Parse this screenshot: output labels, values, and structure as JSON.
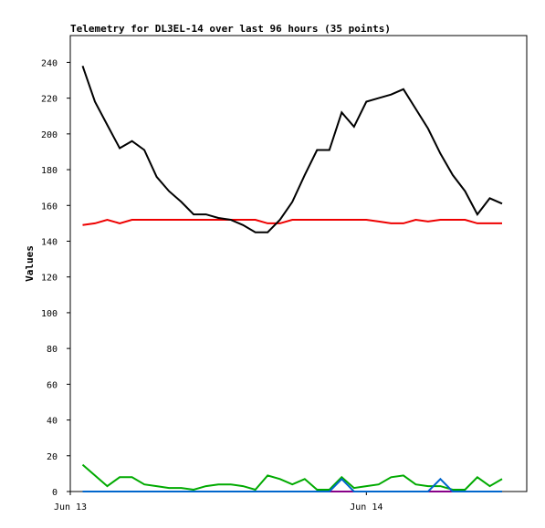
{
  "chart_data": {
    "type": "line",
    "title": "Telemetry for DL3EL-14 over last 96 hours (35 points)",
    "xlabel": "",
    "ylabel": "Values",
    "ylim": [
      0,
      255
    ],
    "y_ticks": [
      0,
      20,
      40,
      60,
      80,
      100,
      120,
      140,
      160,
      180,
      200,
      220,
      240
    ],
    "x_ticks": [
      {
        "x": 0,
        "label": "Jun 13"
      },
      {
        "x": 24,
        "label": "Jun 14"
      }
    ],
    "xlim": [
      0,
      37
    ],
    "grid": false,
    "x": [
      1,
      2,
      3,
      4,
      5,
      6,
      7,
      8,
      9,
      10,
      11,
      12,
      13,
      14,
      15,
      16,
      17,
      18,
      19,
      20,
      21,
      22,
      23,
      24,
      25,
      26,
      27,
      28,
      29,
      30,
      31,
      32,
      33,
      34,
      35
    ],
    "series": [
      {
        "color": "#000000",
        "values": [
          238,
          218,
          205,
          192,
          196,
          191,
          176,
          168,
          162,
          155,
          155,
          153,
          152,
          149,
          145,
          145,
          152,
          162,
          177,
          191,
          191,
          212,
          204,
          218,
          220,
          222,
          225,
          214,
          203,
          189,
          177,
          168,
          155,
          164,
          161
        ]
      },
      {
        "color": "#ee0000",
        "values": [
          149,
          150,
          152,
          150,
          152,
          152,
          152,
          152,
          152,
          152,
          152,
          152,
          152,
          152,
          152,
          150,
          150,
          152,
          152,
          152,
          152,
          152,
          152,
          152,
          151,
          150,
          150,
          152,
          151,
          152,
          152,
          152,
          150,
          150,
          150
        ]
      },
      {
        "color": "#0066cc",
        "values": [
          0,
          0,
          0,
          0,
          0,
          0,
          0,
          0,
          0,
          0,
          0,
          0,
          0,
          0,
          0,
          0,
          0,
          0,
          0,
          0,
          0,
          7,
          0,
          0,
          0,
          0,
          0,
          0,
          0,
          7,
          0,
          0,
          0,
          0,
          0
        ]
      },
      {
        "color": "#00aa00",
        "values": [
          15,
          9,
          3,
          8,
          8,
          4,
          3,
          2,
          2,
          1,
          3,
          4,
          4,
          3,
          1,
          9,
          7,
          4,
          7,
          1,
          1,
          8,
          2,
          3,
          4,
          8,
          9,
          4,
          3,
          3,
          1,
          1,
          8,
          3,
          7
        ]
      },
      {
        "color": "#880088",
        "values": [
          0,
          0,
          0,
          0,
          0,
          0,
          0,
          0,
          0,
          0,
          0,
          0,
          0,
          0,
          0,
          0,
          0,
          0,
          0,
          0,
          0,
          0,
          0,
          0,
          0,
          0,
          0,
          0,
          0,
          0,
          0,
          0,
          0,
          0,
          0
        ]
      }
    ]
  }
}
